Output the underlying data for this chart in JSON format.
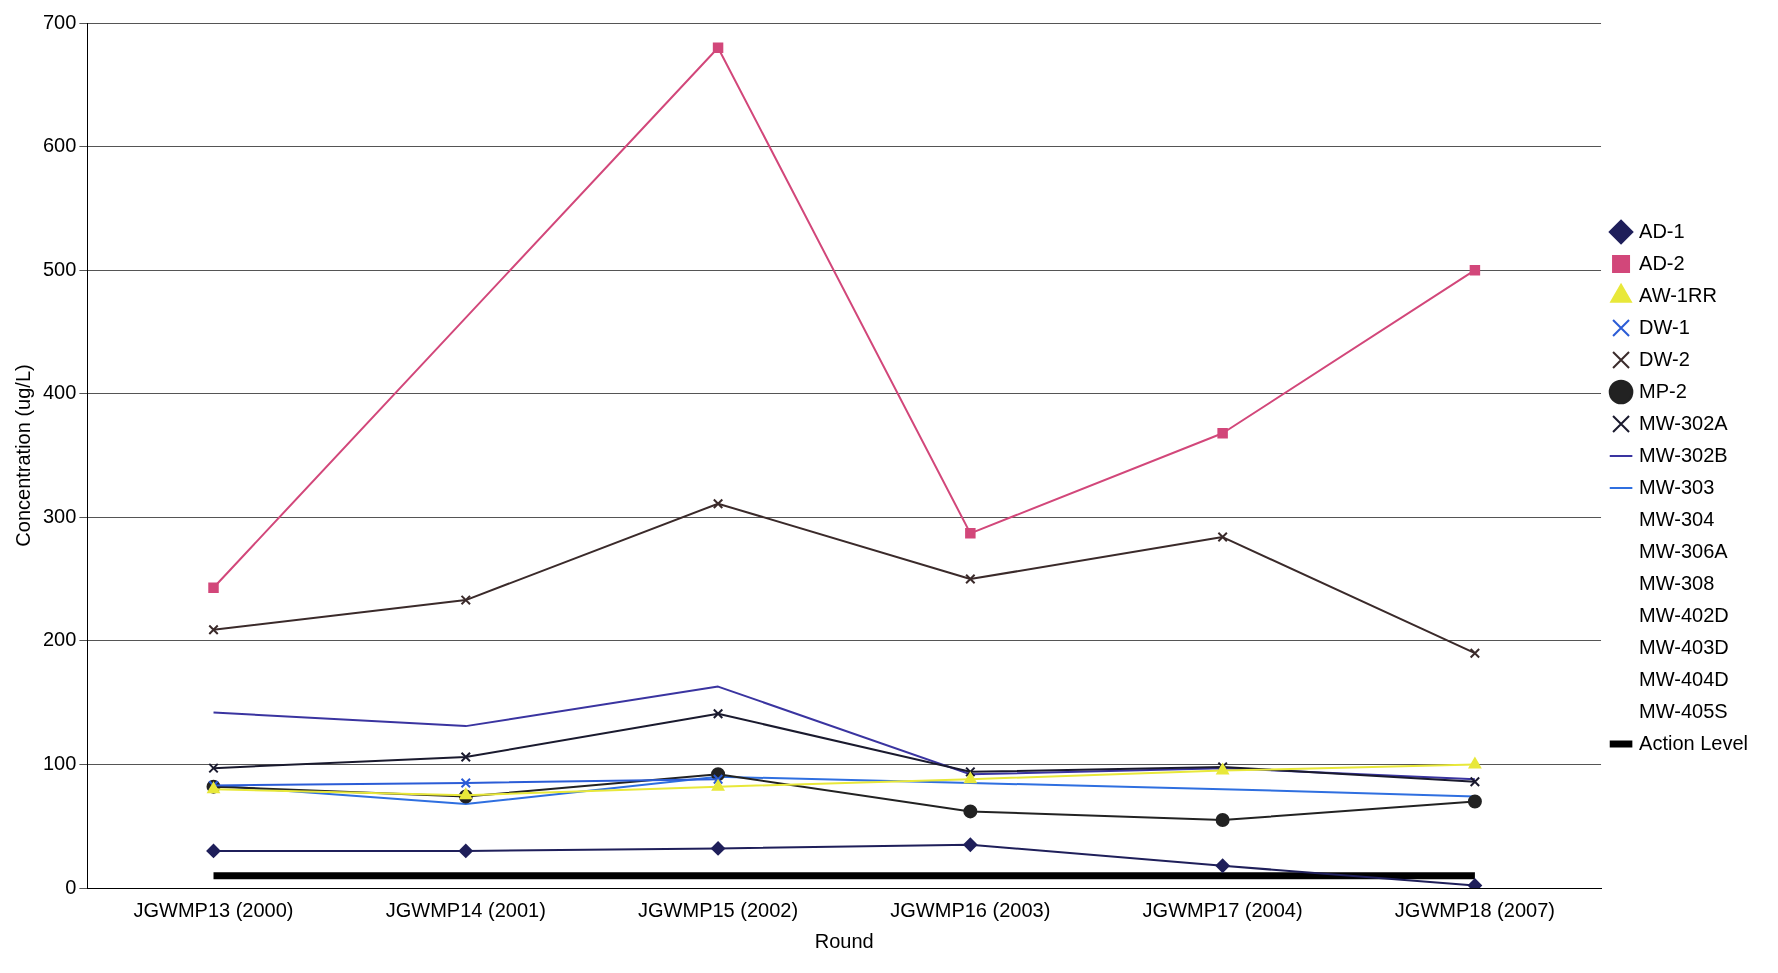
{
  "chart_data": {
    "type": "line",
    "xlabel": "Round",
    "ylabel": "Concentration (ug/L)",
    "categories": [
      "JGWMP13 (2000)",
      "JGWMP14 (2001)",
      "JGWMP15 (2002)",
      "JGWMP16 (2003)",
      "JGWMP17 (2004)",
      "JGWMP18 (2007)"
    ],
    "ylim": [
      0,
      700
    ],
    "yticks": [
      0,
      100,
      200,
      300,
      400,
      500,
      600,
      700
    ],
    "grid": "y",
    "legend": "right",
    "series": [
      {
        "name": "AD-1",
        "color": "#1f1f5a",
        "marker": "diamond",
        "values": [
          30,
          30,
          32,
          35,
          18,
          2
        ]
      },
      {
        "name": "AD-2",
        "color": "#d2477a",
        "marker": "square",
        "values": [
          243,
          null,
          680,
          287,
          368,
          500
        ]
      },
      {
        "name": "AW-1RR",
        "color": "#e8e83a",
        "marker": "triangle",
        "values": [
          80,
          75,
          82,
          88,
          95,
          100
        ]
      },
      {
        "name": "DW-1",
        "color": "#2b5cd6",
        "marker": "cross",
        "values": [
          83,
          85,
          88,
          null,
          null,
          null
        ]
      },
      {
        "name": "DW-2",
        "color": "#3a2a2a",
        "marker": "cross",
        "values": [
          209,
          233,
          311,
          250,
          284,
          190
        ]
      },
      {
        "name": "MP-2",
        "color": "#222222",
        "marker": "circle",
        "values": [
          82,
          74,
          92,
          62,
          55,
          70
        ]
      },
      {
        "name": "MW-302A",
        "color": "#1a1a2e",
        "marker": "cross",
        "values": [
          97,
          106,
          141,
          94,
          98,
          86
        ]
      },
      {
        "name": "MW-302B",
        "color": "#3a34a0",
        "marker": "none",
        "values": [
          142,
          131,
          163,
          92,
          97,
          88
        ]
      },
      {
        "name": "MW-303",
        "color": "#2f6fe0",
        "marker": "none",
        "values": [
          83,
          68,
          90,
          85,
          80,
          74
        ]
      },
      {
        "name": "MW-304",
        "values": [
          null,
          null,
          null,
          null,
          null,
          null
        ]
      },
      {
        "name": "MW-306A",
        "values": [
          null,
          null,
          null,
          null,
          null,
          null
        ]
      },
      {
        "name": "MW-308",
        "values": [
          null,
          null,
          null,
          null,
          null,
          null
        ]
      },
      {
        "name": "MW-402D",
        "values": [
          null,
          null,
          null,
          null,
          null,
          null
        ]
      },
      {
        "name": "MW-403D",
        "values": [
          null,
          null,
          null,
          null,
          null,
          null
        ]
      },
      {
        "name": "MW-404D",
        "values": [
          null,
          null,
          null,
          null,
          null,
          null
        ]
      },
      {
        "name": "MW-405S",
        "values": [
          null,
          null,
          null,
          null,
          null,
          null
        ]
      }
    ],
    "ref_lines": [
      {
        "axis": "y",
        "value": 10,
        "label": "Action Level",
        "color": "#000000"
      }
    ]
  }
}
